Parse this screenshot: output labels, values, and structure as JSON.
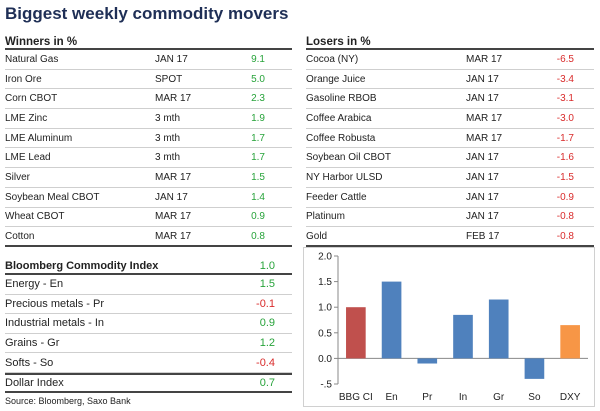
{
  "title": "Biggest weekly commodity movers",
  "winners": {
    "heading": "Winners in %",
    "rows": [
      {
        "name": "Natural Gas",
        "expiry": "JAN 17",
        "value": "9.1"
      },
      {
        "name": "Iron Ore",
        "expiry": "SPOT",
        "value": "5.0"
      },
      {
        "name": "Corn CBOT",
        "expiry": "MAR 17",
        "value": "2.3"
      },
      {
        "name": "LME Zinc",
        "expiry": "3 mth",
        "value": "1.9"
      },
      {
        "name": "LME Aluminum",
        "expiry": "3 mth",
        "value": "1.7"
      },
      {
        "name": "LME Lead",
        "expiry": "3 mth",
        "value": "1.7"
      },
      {
        "name": "Silver",
        "expiry": "MAR 17",
        "value": "1.5"
      },
      {
        "name": "Soybean Meal CBOT",
        "expiry": "JAN 17",
        "value": "1.4"
      },
      {
        "name": "Wheat CBOT",
        "expiry": "MAR 17",
        "value": "0.9"
      },
      {
        "name": "Cotton",
        "expiry": "MAR 17",
        "value": "0.8"
      }
    ]
  },
  "losers": {
    "heading": "Losers in %",
    "rows": [
      {
        "name": "Cocoa (NY)",
        "expiry": "MAR 17",
        "value": "-6.5"
      },
      {
        "name": "Orange Juice",
        "expiry": "JAN 17",
        "value": "-3.4"
      },
      {
        "name": "Gasoline RBOB",
        "expiry": "JAN 17",
        "value": "-3.1"
      },
      {
        "name": "Coffee Arabica",
        "expiry": "MAR 17",
        "value": "-3.0"
      },
      {
        "name": "Coffee Robusta",
        "expiry": "MAR 17",
        "value": "-1.7"
      },
      {
        "name": "Soybean Oil CBOT",
        "expiry": "JAN 17",
        "value": "-1.6"
      },
      {
        "name": "NY Harbor ULSD",
        "expiry": "JAN 17",
        "value": "-1.5"
      },
      {
        "name": "Feeder Cattle",
        "expiry": "JAN 17",
        "value": "-0.9"
      },
      {
        "name": "Platinum",
        "expiry": "JAN 17",
        "value": "-0.8"
      },
      {
        "name": "Gold",
        "expiry": "FEB 17",
        "value": "-0.8"
      }
    ]
  },
  "bci": {
    "heading": "Bloomberg Commodity Index",
    "heading_value": "1.0",
    "rows": [
      {
        "name": "Energy - En",
        "value": "1.5"
      },
      {
        "name": "Precious metals - Pr",
        "value": "-0.1"
      },
      {
        "name": "Industrial metals - In",
        "value": "0.9"
      },
      {
        "name": "Grains - Gr",
        "value": "1.2"
      },
      {
        "name": "Softs - So",
        "value": "-0.4"
      }
    ],
    "total": {
      "name": "Dollar Index",
      "value": "0.7"
    }
  },
  "source": "Source: Bloomberg, Saxo Bank",
  "colors": {
    "positive": "#27a33a",
    "negative": "#d92b2b",
    "bci_bar": "#c0504d",
    "sector_bar": "#4f81bd",
    "dxy_bar": "#f79646"
  },
  "chart_data": {
    "type": "bar",
    "categories": [
      "BBG CI",
      "En",
      "Pr",
      "In",
      "Gr",
      "So",
      "DXY"
    ],
    "values": [
      1.0,
      1.5,
      -0.1,
      0.85,
      1.15,
      -0.4,
      0.65
    ],
    "ylim": [
      -0.5,
      2.0
    ],
    "yticks": [
      2.0,
      1.5,
      1.0,
      0.5,
      0.0,
      -0.5
    ],
    "ytick_labels": [
      "2.0",
      "1.5",
      "1.0",
      "0.5",
      "0.0",
      "-.5"
    ],
    "bar_colors": [
      "#c0504d",
      "#4f81bd",
      "#4f81bd",
      "#4f81bd",
      "#4f81bd",
      "#4f81bd",
      "#f79646"
    ],
    "grid": false
  }
}
